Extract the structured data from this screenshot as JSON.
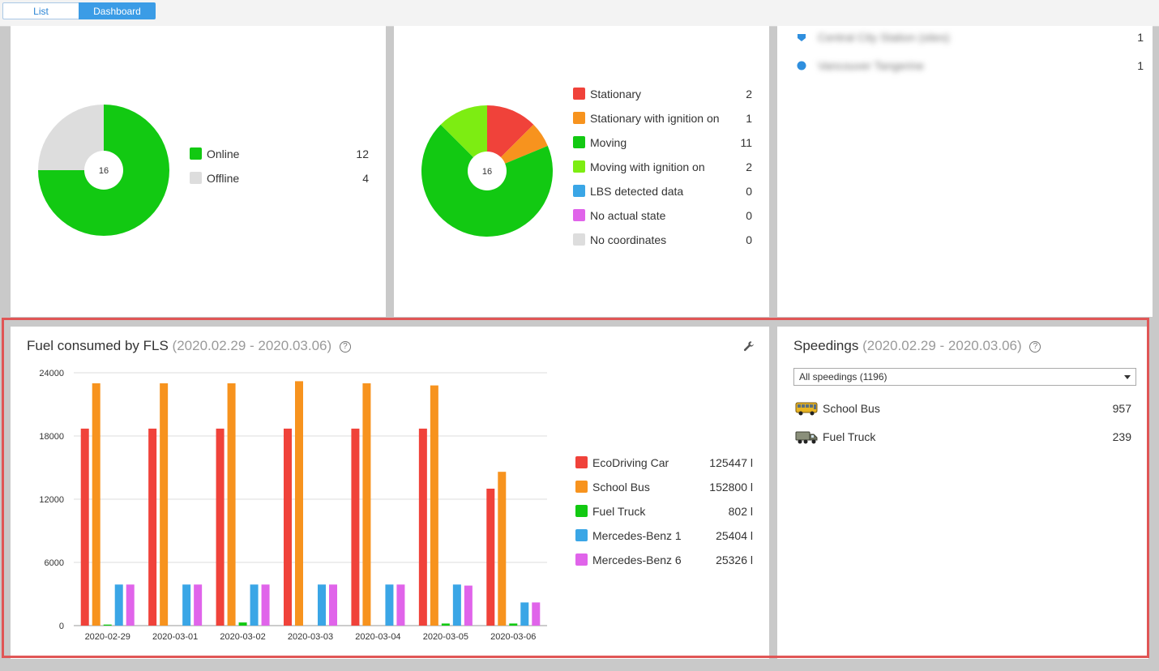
{
  "view_toggle": {
    "list_label": "List",
    "dashboard_label": "Dashboard",
    "active": "Dashboard"
  },
  "connection_widget": {
    "total": "16",
    "items": [
      {
        "label": "Online",
        "value": "12",
        "color": "#12c912"
      },
      {
        "label": "Offline",
        "value": "4",
        "color": "#dddddd"
      }
    ]
  },
  "movement_widget": {
    "total": "16",
    "items": [
      {
        "label": "Stationary",
        "value": "2",
        "color": "#f0423a"
      },
      {
        "label": "Stationary with ignition on",
        "value": "1",
        "color": "#f7931e"
      },
      {
        "label": "Moving",
        "value": "11",
        "color": "#12c912"
      },
      {
        "label": "Moving with ignition on",
        "value": "2",
        "color": "#7ded12"
      },
      {
        "label": "LBS detected data",
        "value": "0",
        "color": "#3aa6e6"
      },
      {
        "label": "No actual state",
        "value": "0",
        "color": "#e064ea"
      },
      {
        "label": "No coordinates",
        "value": "0",
        "color": "#dddddd"
      }
    ]
  },
  "geofence_widget": {
    "items": [
      {
        "label": "Central City Station (sites)",
        "value": "1",
        "icon": "pentagon-marker-icon"
      },
      {
        "label": "Vancouver Tangerine",
        "value": "1",
        "icon": "circle-marker-icon"
      }
    ]
  },
  "fuel_widget": {
    "title": "Fuel consumed by FLS",
    "period": "(2020.02.29 - 2020.03.06)",
    "help": "?",
    "settings_icon": "wrench-icon"
  },
  "speedings_widget": {
    "title": "Speedings",
    "period": "(2020.02.29 - 2020.03.06)",
    "help": "?",
    "filter_value": "All speedings (1196)",
    "items": [
      {
        "label": "School Bus",
        "value": "957",
        "icon": "bus-icon"
      },
      {
        "label": "Fuel Truck",
        "value": "239",
        "icon": "truck-icon"
      }
    ]
  },
  "chart_data": {
    "type": "bar",
    "categories": [
      "2020-02-29",
      "2020-03-01",
      "2020-03-02",
      "2020-03-03",
      "2020-03-04",
      "2020-03-05",
      "2020-03-06"
    ],
    "ylim": [
      0,
      24000
    ],
    "yticks": [
      "24000",
      "18000",
      "12000",
      "6000",
      "0"
    ],
    "grid": true,
    "legend_placement": "right",
    "series": [
      {
        "name": "EcoDriving Car",
        "total": "125447 l",
        "color": "#f0423a",
        "values": [
          18700,
          18700,
          18700,
          18700,
          18700,
          18700,
          13000
        ]
      },
      {
        "name": "School Bus",
        "total": "152800 l",
        "color": "#f7931e",
        "values": [
          23000,
          23000,
          23000,
          23200,
          23000,
          22800,
          14600
        ]
      },
      {
        "name": "Fuel Truck",
        "total": "802 l",
        "color": "#12c912",
        "values": [
          100,
          0,
          300,
          0,
          0,
          200,
          200
        ]
      },
      {
        "name": "Mercedes-Benz 1",
        "total": "25404 l",
        "color": "#3aa6e6",
        "values": [
          3900,
          3900,
          3900,
          3900,
          3900,
          3900,
          2200
        ]
      },
      {
        "name": "Mercedes-Benz 6",
        "total": "25326 l",
        "color": "#e064ea",
        "values": [
          3900,
          3900,
          3900,
          3900,
          3900,
          3800,
          2200
        ]
      }
    ]
  }
}
